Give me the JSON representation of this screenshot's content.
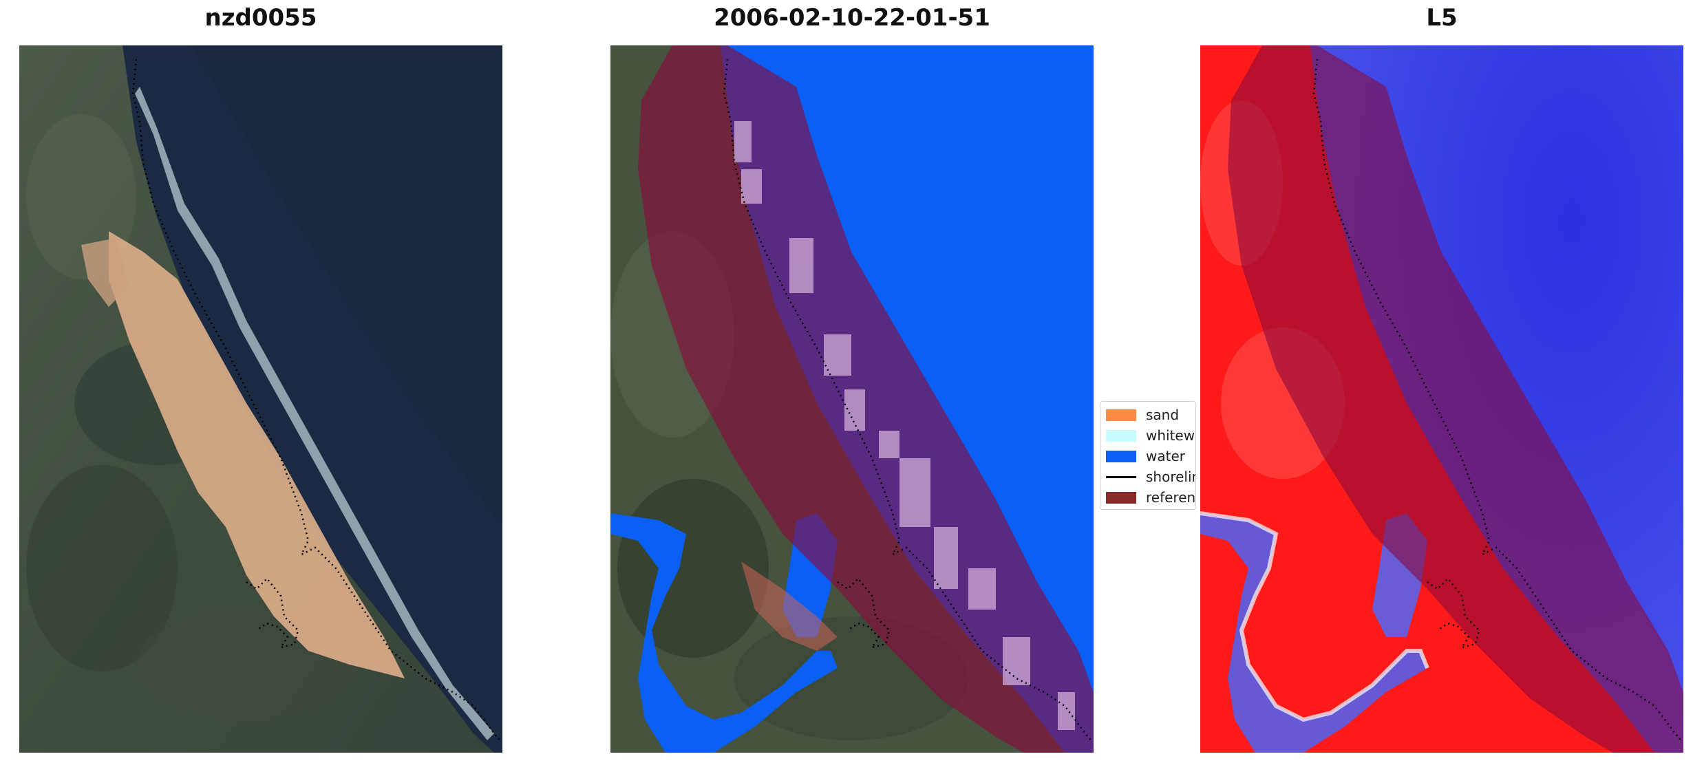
{
  "panels": {
    "left": {
      "title": "nzd0055"
    },
    "middle": {
      "title": "2006-02-10-22-01-51"
    },
    "right": {
      "title": "L5"
    }
  },
  "legend": {
    "items": [
      {
        "label": "sand",
        "color": "#ff8c42",
        "kind": "patch"
      },
      {
        "label": "whitewater",
        "color": "#c8fbff",
        "kind": "patch"
      },
      {
        "label": "water",
        "color": "#0a5ff5",
        "kind": "patch"
      },
      {
        "label": "shoreline",
        "color": "#000000",
        "kind": "line"
      },
      {
        "label": "reference",
        "color": "#8b2a2a",
        "kind": "patch"
      }
    ]
  },
  "colors": {
    "ocean_deep": "#1b2a43",
    "beach_sand": "#d6aa86",
    "classified_water": "#0a5ff5",
    "reference_band": "#8b0a3c",
    "index_land": "#ff1a1a",
    "index_water": "#2030e8"
  }
}
